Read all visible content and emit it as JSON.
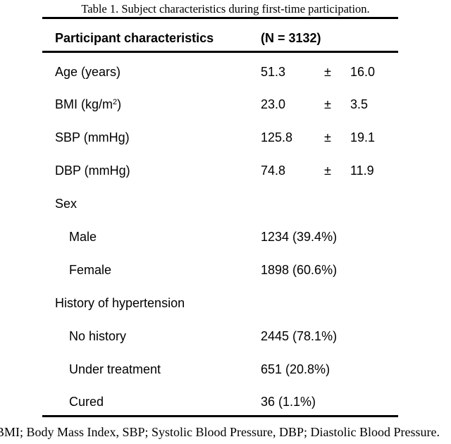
{
  "caption": "Table 1. Subject characteristics during first-time participation.",
  "header": {
    "label": "Participant characteristics",
    "n_value": "(N = 3132)"
  },
  "rows": [
    {
      "label": "Age (years)",
      "mean": "51.3",
      "pm": "±",
      "sd": "16.0"
    },
    {
      "label_pre": "BMI (kg/m",
      "label_sup": "2",
      "label_post": ")",
      "mean": "23.0",
      "pm": "±",
      "sd": "3.5"
    },
    {
      "label": "SBP (mmHg)",
      "mean": "125.8",
      "pm": "±",
      "sd": "19.1"
    },
    {
      "label": "DBP (mmHg)",
      "mean": "74.8",
      "pm": "±",
      "sd": "11.9"
    },
    {
      "label": "Sex"
    },
    {
      "label": "Male",
      "value": "1234 (39.4%)"
    },
    {
      "label": "Female",
      "value": "1898 (60.6%)"
    },
    {
      "label": "History of hypertension"
    },
    {
      "label": "No history",
      "value": "2445 (78.1%)"
    },
    {
      "label": "Under treatment",
      "value": "651 (20.8%)"
    },
    {
      "label": "Cured",
      "value": "36 (1.1%)"
    }
  ],
  "footnote": "BMI; Body Mass Index, SBP; Systolic Blood Pressure, DBP; Diastolic Blood Pressure."
}
